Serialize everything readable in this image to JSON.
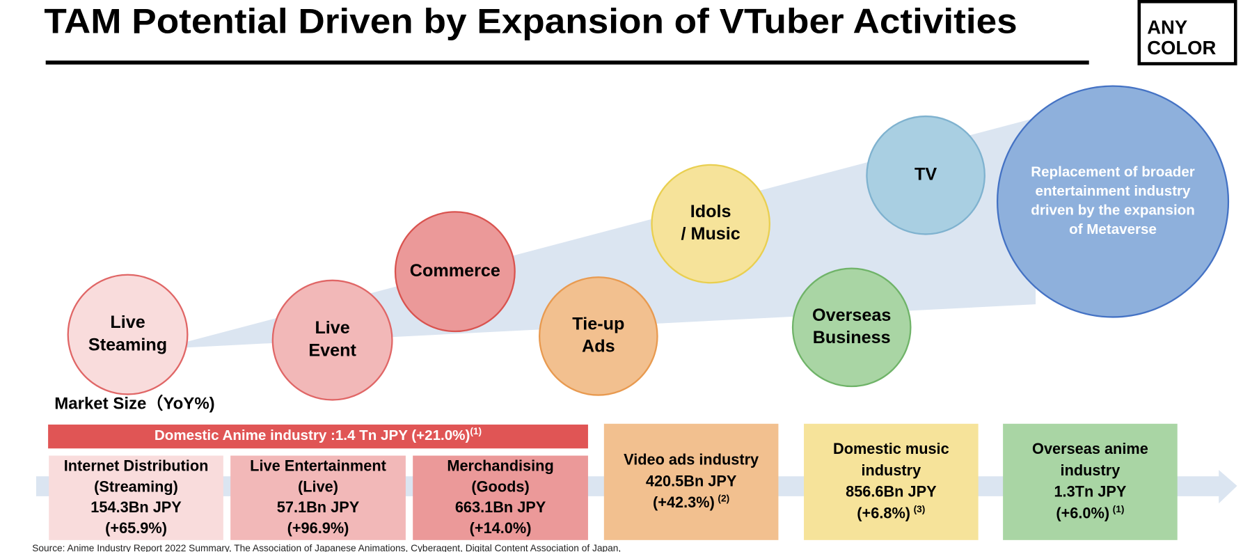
{
  "header": {
    "title": "TAM Potential Driven by Expansion of VTuber Activities",
    "logo": [
      "ANY",
      "COLOR"
    ]
  },
  "circles": [
    {
      "label": [
        "Live",
        "Steaming"
      ]
    },
    {
      "label": [
        "Live",
        "Event"
      ]
    },
    {
      "label": [
        "Commerce"
      ]
    },
    {
      "label": [
        "Tie-up",
        "Ads"
      ]
    },
    {
      "label": [
        "Idols",
        "/ Music"
      ]
    },
    {
      "label": [
        "TV"
      ]
    },
    {
      "label": [
        "Overseas",
        "Business"
      ]
    },
    {
      "label": [
        "Replacement of  broader",
        "entertainment industry",
        "driven by the expansion",
        "of Metaverse"
      ]
    }
  ],
  "market_size_label": "Market Size（YoY%)",
  "banner": {
    "text": "Domestic Anime industry :1.4 Tn JPY (+21.0%)",
    "note": "(1)"
  },
  "boxes": [
    {
      "lines": [
        "Internet Distribution",
        "(Streaming)",
        "154.3Bn JPY",
        "(+65.9%)"
      ]
    },
    {
      "lines": [
        "Live Entertainment",
        "(Live)",
        "57.1Bn JPY",
        "(+96.9%)"
      ]
    },
    {
      "lines": [
        "Merchandising",
        "(Goods)",
        "663.1Bn JPY",
        "(+14.0%)"
      ]
    },
    {
      "lines": [
        "Video ads industry",
        "420.5Bn JPY",
        "(+42.3%)"
      ],
      "note": "(2)"
    },
    {
      "lines": [
        "Domestic music",
        "industry",
        "856.6Bn JPY",
        "(+6.8%)"
      ],
      "note": "(3)"
    },
    {
      "lines": [
        "Overseas anime",
        "industry",
        "1.3Tn JPY",
        "(+6.0%)"
      ],
      "note": "(1)"
    }
  ],
  "source": "Source: Anime Industry Report 2022 Summary, The Association of Japanese Animations, Cyberagent, Digital Content Association of Japan,"
}
